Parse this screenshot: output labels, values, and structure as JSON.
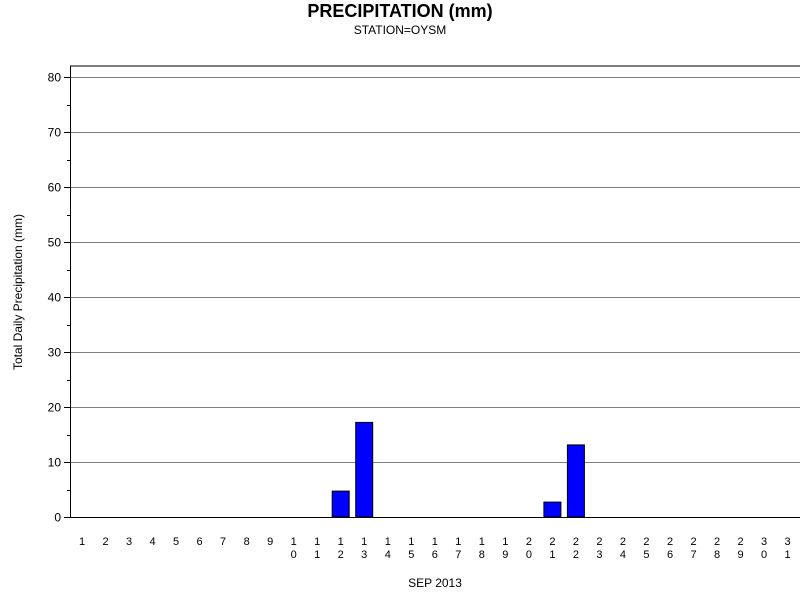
{
  "chart_data": {
    "type": "bar",
    "title": "PRECIPITATION (mm)",
    "subtitle": "STATION=OYSM",
    "xlabel": "SEP 2013",
    "ylabel": "Total Daily Precipitation (mm)",
    "ylim": [
      0,
      80
    ],
    "yticks": [
      0,
      10,
      20,
      30,
      40,
      50,
      60,
      70,
      80
    ],
    "grid": true,
    "categories": [
      "1",
      "2",
      "3",
      "4",
      "5",
      "6",
      "7",
      "8",
      "9",
      "10",
      "11",
      "12",
      "13",
      "14",
      "15",
      "16",
      "17",
      "18",
      "19",
      "20",
      "21",
      "22",
      "23",
      "24",
      "25",
      "26",
      "27",
      "28",
      "29",
      "30",
      "31"
    ],
    "values": [
      0,
      0,
      0,
      0,
      0,
      0,
      0,
      0,
      0,
      0,
      0,
      4.7,
      17.2,
      0,
      0,
      0,
      0,
      0,
      0,
      0,
      2.7,
      13.1,
      0,
      0,
      0,
      0,
      0,
      0,
      0,
      0,
      0
    ],
    "bar_color": "#0000ff",
    "bar_edge_color": "#000000"
  }
}
